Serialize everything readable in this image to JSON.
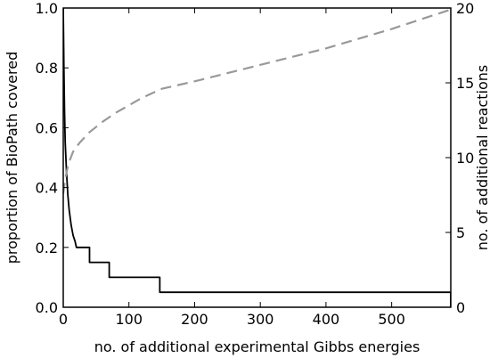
{
  "chart_data": {
    "type": "line",
    "title": "",
    "xlabel": "no. of additional experimental Gibbs energies",
    "ylabel_left": "proportion of BioPath covered",
    "ylabel_right": "no. of additional reactions",
    "xlim": [
      0,
      590
    ],
    "ylim_left": [
      0,
      1.0
    ],
    "ylim_right": [
      0,
      20
    ],
    "grid": false,
    "legend": "none",
    "x_ticks": [
      "0",
      "100",
      "200",
      "300",
      "400",
      "500"
    ],
    "x_tick_values": [
      0,
      100,
      200,
      300,
      400,
      500
    ],
    "y_left_ticks": [
      "0.0",
      "0.2",
      "0.4",
      "0.6",
      "0.8",
      "1.0"
    ],
    "y_left_tick_values": [
      0,
      0.2,
      0.4,
      0.6,
      0.8,
      1.0
    ],
    "y_right_ticks": [
      "0",
      "5",
      "10",
      "15",
      "20"
    ],
    "y_right_tick_values": [
      0,
      5,
      10,
      15,
      20
    ],
    "series": [
      {
        "axis": "right",
        "style": "solid",
        "color": "#000000",
        "x": [
          0,
          1,
          2,
          3,
          5,
          7,
          9,
          12,
          15,
          18,
          20,
          20,
          25,
          25,
          40,
          40,
          55,
          55,
          70,
          70,
          147,
          147,
          590,
          590
        ],
        "y": [
          20,
          16,
          13,
          11,
          9,
          7.5,
          6.5,
          5.5,
          4.8,
          4.4,
          4,
          4,
          4,
          4,
          4,
          3,
          3,
          3,
          3,
          2,
          2,
          1,
          1,
          0
        ]
      },
      {
        "axis": "left",
        "style": "dashed",
        "color": "#999999",
        "x": [
          0,
          3,
          8,
          15,
          25,
          40,
          60,
          80,
          100,
          120,
          150,
          200,
          300,
          400,
          500,
          590
        ],
        "y": [
          0.38,
          0.43,
          0.48,
          0.52,
          0.55,
          0.585,
          0.62,
          0.65,
          0.675,
          0.7,
          0.73,
          0.755,
          0.81,
          0.865,
          0.93,
          0.995
        ]
      }
    ]
  }
}
